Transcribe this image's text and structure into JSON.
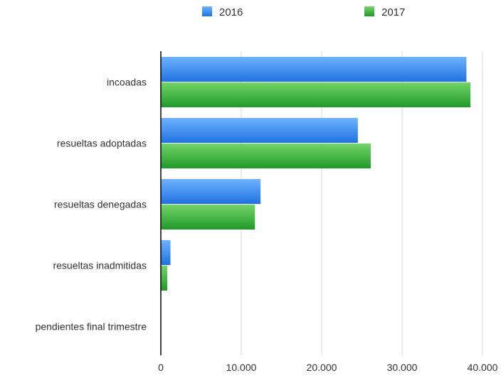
{
  "colors": {
    "series_2016": "#1e73e0",
    "series_2016_light": "#6fb2ff",
    "series_2017": "#1f9a2a",
    "series_2017_light": "#74d468",
    "gridline": "#d9d9d9",
    "axis": "#000000"
  },
  "chart_data": {
    "type": "bar",
    "orientation": "horizontal",
    "title": "",
    "xlabel": "",
    "ylabel": "",
    "categories": [
      "incoadas",
      "resueltas  adoptadas",
      "resueltas denegadas",
      "resueltas inadmitidas",
      "pendientes final trimestre"
    ],
    "series": [
      {
        "name": "2016",
        "values": [
          38000,
          24500,
          12400,
          1200,
          0
        ]
      },
      {
        "name": "2017",
        "values": [
          38500,
          26100,
          11700,
          800,
          0
        ]
      }
    ],
    "xlim": [
      0,
      40000
    ],
    "ticks": [
      {
        "value": 0,
        "label": "0"
      },
      {
        "value": 10000,
        "label": "10.000"
      },
      {
        "value": 20000,
        "label": "20.000"
      },
      {
        "value": 30000,
        "label": "30.000"
      },
      {
        "value": 40000,
        "label": "40.000"
      }
    ],
    "grid": true,
    "legend_position": "top"
  }
}
